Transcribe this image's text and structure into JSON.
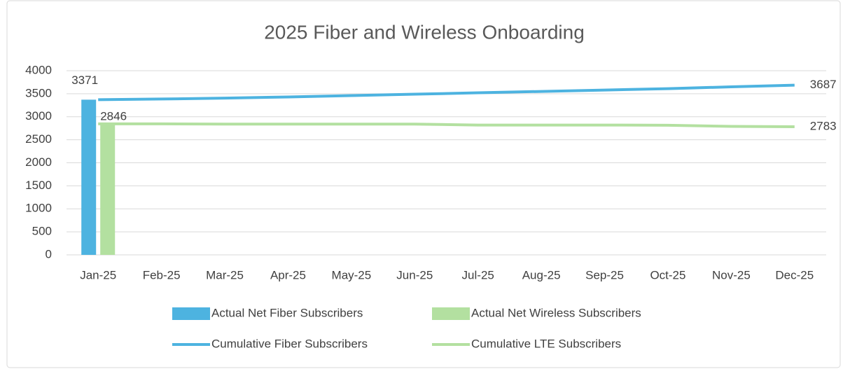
{
  "chart_data": {
    "type": "combo",
    "title": "2025 Fiber and Wireless Onboarding",
    "categories": [
      "Jan-25",
      "Feb-25",
      "Mar-25",
      "Apr-25",
      "May-25",
      "Jun-25",
      "Jul-25",
      "Aug-25",
      "Sep-25",
      "Oct-25",
      "Nov-25",
      "Dec-25"
    ],
    "series": [
      {
        "name": "Actual Net Fiber Subscribers",
        "type": "bar",
        "color": "#4db3e0",
        "values": [
          3371,
          null,
          null,
          null,
          null,
          null,
          null,
          null,
          null,
          null,
          null,
          null
        ]
      },
      {
        "name": "Actual Net Wireless Subscribers",
        "type": "bar",
        "color": "#b3e0a0",
        "values": [
          2846,
          null,
          null,
          null,
          null,
          null,
          null,
          null,
          null,
          null,
          null,
          null
        ]
      },
      {
        "name": "Cumulative Fiber Subscribers",
        "type": "line",
        "color": "#4db3e0",
        "values": [
          3371,
          3385,
          3405,
          3430,
          3460,
          3490,
          3520,
          3550,
          3580,
          3610,
          3650,
          3687
        ]
      },
      {
        "name": "Cumulative LTE Subscribers",
        "type": "line",
        "color": "#b3e0a0",
        "values": [
          2846,
          2846,
          2840,
          2840,
          2840,
          2840,
          2820,
          2820,
          2820,
          2815,
          2790,
          2783
        ]
      }
    ],
    "ylim": [
      0,
      4000
    ],
    "yticks": [
      0,
      500,
      1000,
      1500,
      2000,
      2500,
      3000,
      3500,
      4000
    ],
    "grid": true
  }
}
